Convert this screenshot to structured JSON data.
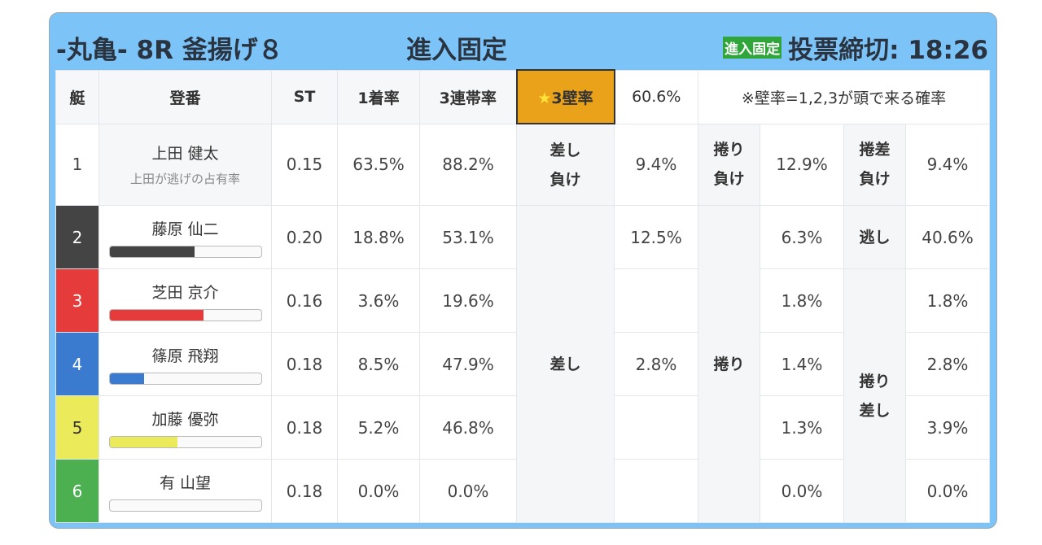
{
  "header": {
    "title": "-丸亀- 8R 釜揚げ８",
    "course": "進入固定",
    "badge": "進入固定",
    "deadline": "投票締切: 18:26"
  },
  "columns": {
    "waku": "艇",
    "toban": "登番",
    "st": "ST",
    "win": "1着率",
    "top3": "3連帯率",
    "wall_star": "★",
    "wall": "3壁率",
    "wall_value": "60.6%",
    "note": "※壁率=1,2,3が頭で来る確率"
  },
  "row1": {
    "waku": "1",
    "name": "上田 健太",
    "sub": "上田が逃げの占有率",
    "st": "0.15",
    "win": "63.5%",
    "top3": "88.2%",
    "sashi_make": "差し",
    "sashi_make2": "負け",
    "sashi_make_val": "9.4%",
    "makuri_make": "捲り",
    "makuri_make2": "負け",
    "makuri_make_val": "12.9%",
    "makusashi_make": "捲差",
    "makusashi_make2": "負け",
    "makusashi_make_val": "9.4%"
  },
  "labels": {
    "sashi": "差し",
    "makuri": "捲り",
    "nige": "逃し",
    "makusashi1": "捲り",
    "makusashi2": "差し"
  },
  "rows": [
    {
      "waku": "2",
      "color": "#444444",
      "name": "藤原 仙二",
      "bar": 0.56,
      "st": "0.20",
      "win": "18.8%",
      "top3": "53.1%",
      "sashi": "12.5%",
      "makuri": "6.3%",
      "last": "40.6%"
    },
    {
      "waku": "3",
      "color": "#e63b3b",
      "name": "芝田 京介",
      "bar": 0.62,
      "st": "0.16",
      "win": "3.6%",
      "top3": "19.6%",
      "sashi": "",
      "makuri": "1.8%",
      "last": "1.8%"
    },
    {
      "waku": "4",
      "color": "#3a7bd0",
      "name": "篠原 飛翔",
      "bar": 0.23,
      "st": "0.18",
      "win": "8.5%",
      "top3": "47.9%",
      "sashi": "2.8%",
      "makuri": "1.4%",
      "last": "2.8%"
    },
    {
      "waku": "5",
      "color": "#eaea5a",
      "name": "加藤 優弥",
      "bar": 0.45,
      "st": "0.18",
      "win": "5.2%",
      "top3": "46.8%",
      "sashi": "",
      "makuri": "1.3%",
      "last": "3.9%"
    },
    {
      "waku": "6",
      "color": "#4caf50",
      "name": "有 山望",
      "bar": 0,
      "st": "0.18",
      "win": "0.0%",
      "top3": "0.0%",
      "sashi": "",
      "makuri": "0.0%",
      "last": "0.0%"
    }
  ]
}
